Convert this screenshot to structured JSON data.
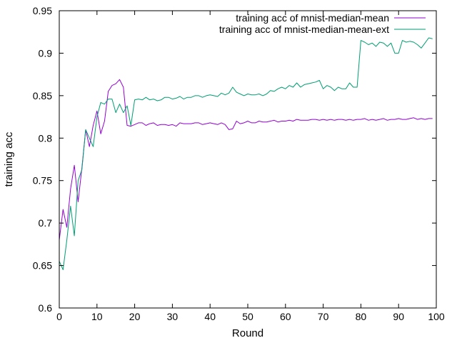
{
  "chart_data": {
    "type": "line",
    "title": "",
    "xlabel": "Round",
    "ylabel": "training acc",
    "xlim": [
      0,
      100
    ],
    "ylim": [
      0.6,
      0.95
    ],
    "x_ticks": [
      0,
      10,
      20,
      30,
      40,
      50,
      60,
      70,
      80,
      90,
      100
    ],
    "y_ticks": [
      0.6,
      0.65,
      0.7,
      0.75,
      0.8,
      0.85,
      0.9,
      0.95
    ],
    "x_tick_labels": [
      "0",
      "10",
      "20",
      "30",
      "40",
      "50",
      "60",
      "70",
      "80",
      "90",
      "100"
    ],
    "y_tick_labels": [
      "0.6",
      "0.65",
      "0.7",
      "0.75",
      "0.8",
      "0.85",
      "0.9",
      "0.95"
    ],
    "grid": false,
    "legend_position": "top-right",
    "series": [
      {
        "name": "training acc of mnist-median-mean",
        "color": "#9400d3",
        "x": [
          0,
          1,
          2,
          3,
          4,
          5,
          6,
          7,
          8,
          9,
          10,
          11,
          12,
          13,
          14,
          15,
          16,
          17,
          18,
          19,
          20,
          21,
          22,
          23,
          24,
          25,
          26,
          27,
          28,
          29,
          30,
          31,
          32,
          33,
          34,
          35,
          36,
          37,
          38,
          39,
          40,
          41,
          42,
          43,
          44,
          45,
          46,
          47,
          48,
          49,
          50,
          51,
          52,
          53,
          54,
          55,
          56,
          57,
          58,
          59,
          60,
          61,
          62,
          63,
          64,
          65,
          66,
          67,
          68,
          69,
          70,
          71,
          72,
          73,
          74,
          75,
          76,
          77,
          78,
          79,
          80,
          81,
          82,
          83,
          84,
          85,
          86,
          87,
          88,
          89,
          90,
          91,
          92,
          93,
          94,
          95,
          96,
          97,
          98,
          99
        ],
        "values": [
          0.68,
          0.716,
          0.695,
          0.74,
          0.768,
          0.725,
          0.765,
          0.81,
          0.79,
          0.815,
          0.832,
          0.805,
          0.82,
          0.855,
          0.862,
          0.864,
          0.869,
          0.86,
          0.815,
          0.814,
          0.816,
          0.818,
          0.818,
          0.815,
          0.817,
          0.818,
          0.815,
          0.816,
          0.816,
          0.815,
          0.816,
          0.814,
          0.818,
          0.817,
          0.817,
          0.817,
          0.818,
          0.818,
          0.816,
          0.817,
          0.818,
          0.817,
          0.816,
          0.818,
          0.816,
          0.81,
          0.811,
          0.82,
          0.817,
          0.818,
          0.82,
          0.818,
          0.818,
          0.82,
          0.819,
          0.819,
          0.82,
          0.821,
          0.819,
          0.82,
          0.82,
          0.821,
          0.82,
          0.822,
          0.821,
          0.821,
          0.821,
          0.822,
          0.822,
          0.821,
          0.822,
          0.821,
          0.822,
          0.821,
          0.822,
          0.822,
          0.821,
          0.822,
          0.821,
          0.822,
          0.822,
          0.823,
          0.821,
          0.822,
          0.821,
          0.822,
          0.823,
          0.821,
          0.822,
          0.822,
          0.823,
          0.822,
          0.822,
          0.823,
          0.824,
          0.822,
          0.823,
          0.822,
          0.823,
          0.823
        ]
      },
      {
        "name": "training acc of mnist-median-mean-ext",
        "color": "#009e73",
        "x": [
          0,
          1,
          2,
          3,
          4,
          5,
          6,
          7,
          8,
          9,
          10,
          11,
          12,
          13,
          14,
          15,
          16,
          17,
          18,
          19,
          20,
          21,
          22,
          23,
          24,
          25,
          26,
          27,
          28,
          29,
          30,
          31,
          32,
          33,
          34,
          35,
          36,
          37,
          38,
          39,
          40,
          41,
          42,
          43,
          44,
          45,
          46,
          47,
          48,
          49,
          50,
          51,
          52,
          53,
          54,
          55,
          56,
          57,
          58,
          59,
          60,
          61,
          62,
          63,
          64,
          65,
          66,
          67,
          68,
          69,
          70,
          71,
          72,
          73,
          74,
          75,
          76,
          77,
          78,
          79,
          80,
          81,
          82,
          83,
          84,
          85,
          86,
          87,
          88,
          89,
          90,
          91,
          92,
          93,
          94,
          95,
          96,
          97,
          98,
          99
        ],
        "values": [
          0.655,
          0.645,
          0.68,
          0.72,
          0.685,
          0.75,
          0.763,
          0.81,
          0.8,
          0.79,
          0.825,
          0.842,
          0.84,
          0.846,
          0.846,
          0.83,
          0.84,
          0.83,
          0.838,
          0.815,
          0.845,
          0.846,
          0.845,
          0.848,
          0.845,
          0.846,
          0.844,
          0.845,
          0.848,
          0.848,
          0.846,
          0.847,
          0.849,
          0.846,
          0.848,
          0.848,
          0.85,
          0.85,
          0.848,
          0.85,
          0.851,
          0.85,
          0.849,
          0.853,
          0.851,
          0.853,
          0.86,
          0.854,
          0.852,
          0.85,
          0.852,
          0.851,
          0.851,
          0.852,
          0.85,
          0.852,
          0.856,
          0.855,
          0.858,
          0.86,
          0.858,
          0.862,
          0.86,
          0.865,
          0.86,
          0.863,
          0.864,
          0.865,
          0.866,
          0.868,
          0.858,
          0.862,
          0.86,
          0.856,
          0.86,
          0.858,
          0.858,
          0.865,
          0.86,
          0.86,
          0.915,
          0.913,
          0.91,
          0.912,
          0.908,
          0.913,
          0.912,
          0.908,
          0.912,
          0.9,
          0.9,
          0.915,
          0.913,
          0.914,
          0.913,
          0.91,
          0.906,
          0.912,
          0.918,
          0.917
        ]
      }
    ]
  }
}
